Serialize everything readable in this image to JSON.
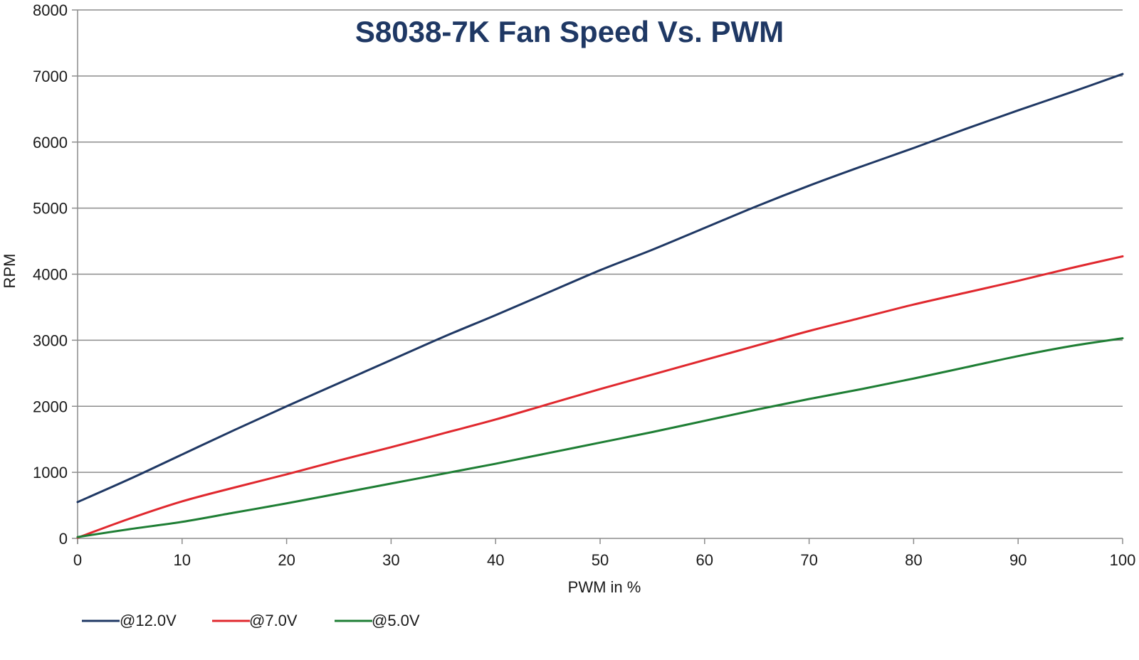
{
  "chart_data": {
    "type": "line",
    "title": "S8038-7K Fan Speed Vs. PWM",
    "xlabel": "PWM in %",
    "ylabel": "RPM",
    "xlim": [
      0,
      100
    ],
    "ylim": [
      0,
      8000
    ],
    "x_ticks": [
      "0",
      "10",
      "20",
      "30",
      "40",
      "50",
      "60",
      "70",
      "80",
      "90",
      "100"
    ],
    "y_ticks": [
      "0",
      "1000",
      "2000",
      "3000",
      "4000",
      "5000",
      "6000",
      "7000",
      "8000"
    ],
    "grid": true,
    "legend_position": "bottom-left",
    "x": [
      0,
      5,
      10,
      15,
      20,
      25,
      30,
      35,
      40,
      45,
      50,
      55,
      60,
      65,
      70,
      75,
      80,
      85,
      90,
      95,
      100
    ],
    "series": [
      {
        "name": "@12.0V",
        "color": "#1f3864",
        "values": [
          550,
          900,
          1270,
          1640,
          2000,
          2350,
          2700,
          3050,
          3380,
          3720,
          4060,
          4370,
          4700,
          5030,
          5340,
          5630,
          5910,
          6200,
          6480,
          6750,
          7030
        ]
      },
      {
        "name": "@7.0V",
        "color": "#e0282e",
        "values": [
          10,
          300,
          560,
          770,
          970,
          1180,
          1380,
          1590,
          1800,
          2030,
          2260,
          2480,
          2700,
          2920,
          3140,
          3340,
          3540,
          3720,
          3900,
          4090,
          4270
        ]
      },
      {
        "name": "@5.0V",
        "color": "#1e7e34",
        "values": [
          20,
          140,
          250,
          390,
          530,
          680,
          830,
          980,
          1130,
          1290,
          1450,
          1610,
          1780,
          1950,
          2110,
          2260,
          2420,
          2590,
          2760,
          2910,
          3030
        ]
      }
    ]
  }
}
